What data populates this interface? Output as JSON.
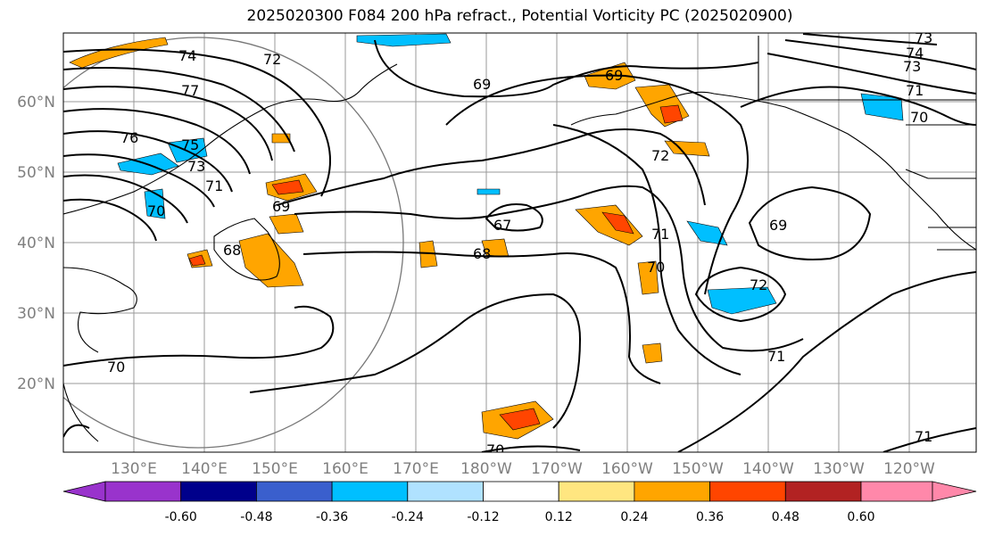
{
  "title": "2025020300 F084 200 hPa refract., Potential Vorticity PC (2025020900)",
  "lat_labels": [
    "60°N",
    "50°N",
    "40°N",
    "30°N",
    "20°N"
  ],
  "lon_labels": [
    "130°E",
    "140°E",
    "150°E",
    "160°E",
    "170°E",
    "180°W",
    "170°W",
    "160°W",
    "150°W",
    "140°W",
    "130°W",
    "120°W"
  ],
  "contour_labels": [
    "74",
    "72",
    "77",
    "76",
    "75",
    "73",
    "71",
    "70",
    "69",
    "68",
    "69",
    "67",
    "68",
    "69",
    "72",
    "71",
    "70",
    "69",
    "72",
    "70",
    "71",
    "71",
    "70",
    "73",
    "74",
    "73",
    "71",
    "70"
  ],
  "colorbar": {
    "ticks": [
      "-0.60",
      "-0.48",
      "-0.36",
      "-0.24",
      "-0.12",
      "0.12",
      "0.24",
      "0.36",
      "0.48",
      "0.60"
    ],
    "colors": [
      "#9933cc",
      "#00008b",
      "#3a5fcd",
      "#00bfff",
      "#b0e2ff",
      "#ffffff",
      "#ffe680",
      "#ffa500",
      "#ff4500",
      "#b22222",
      "#ff88aa"
    ]
  }
}
